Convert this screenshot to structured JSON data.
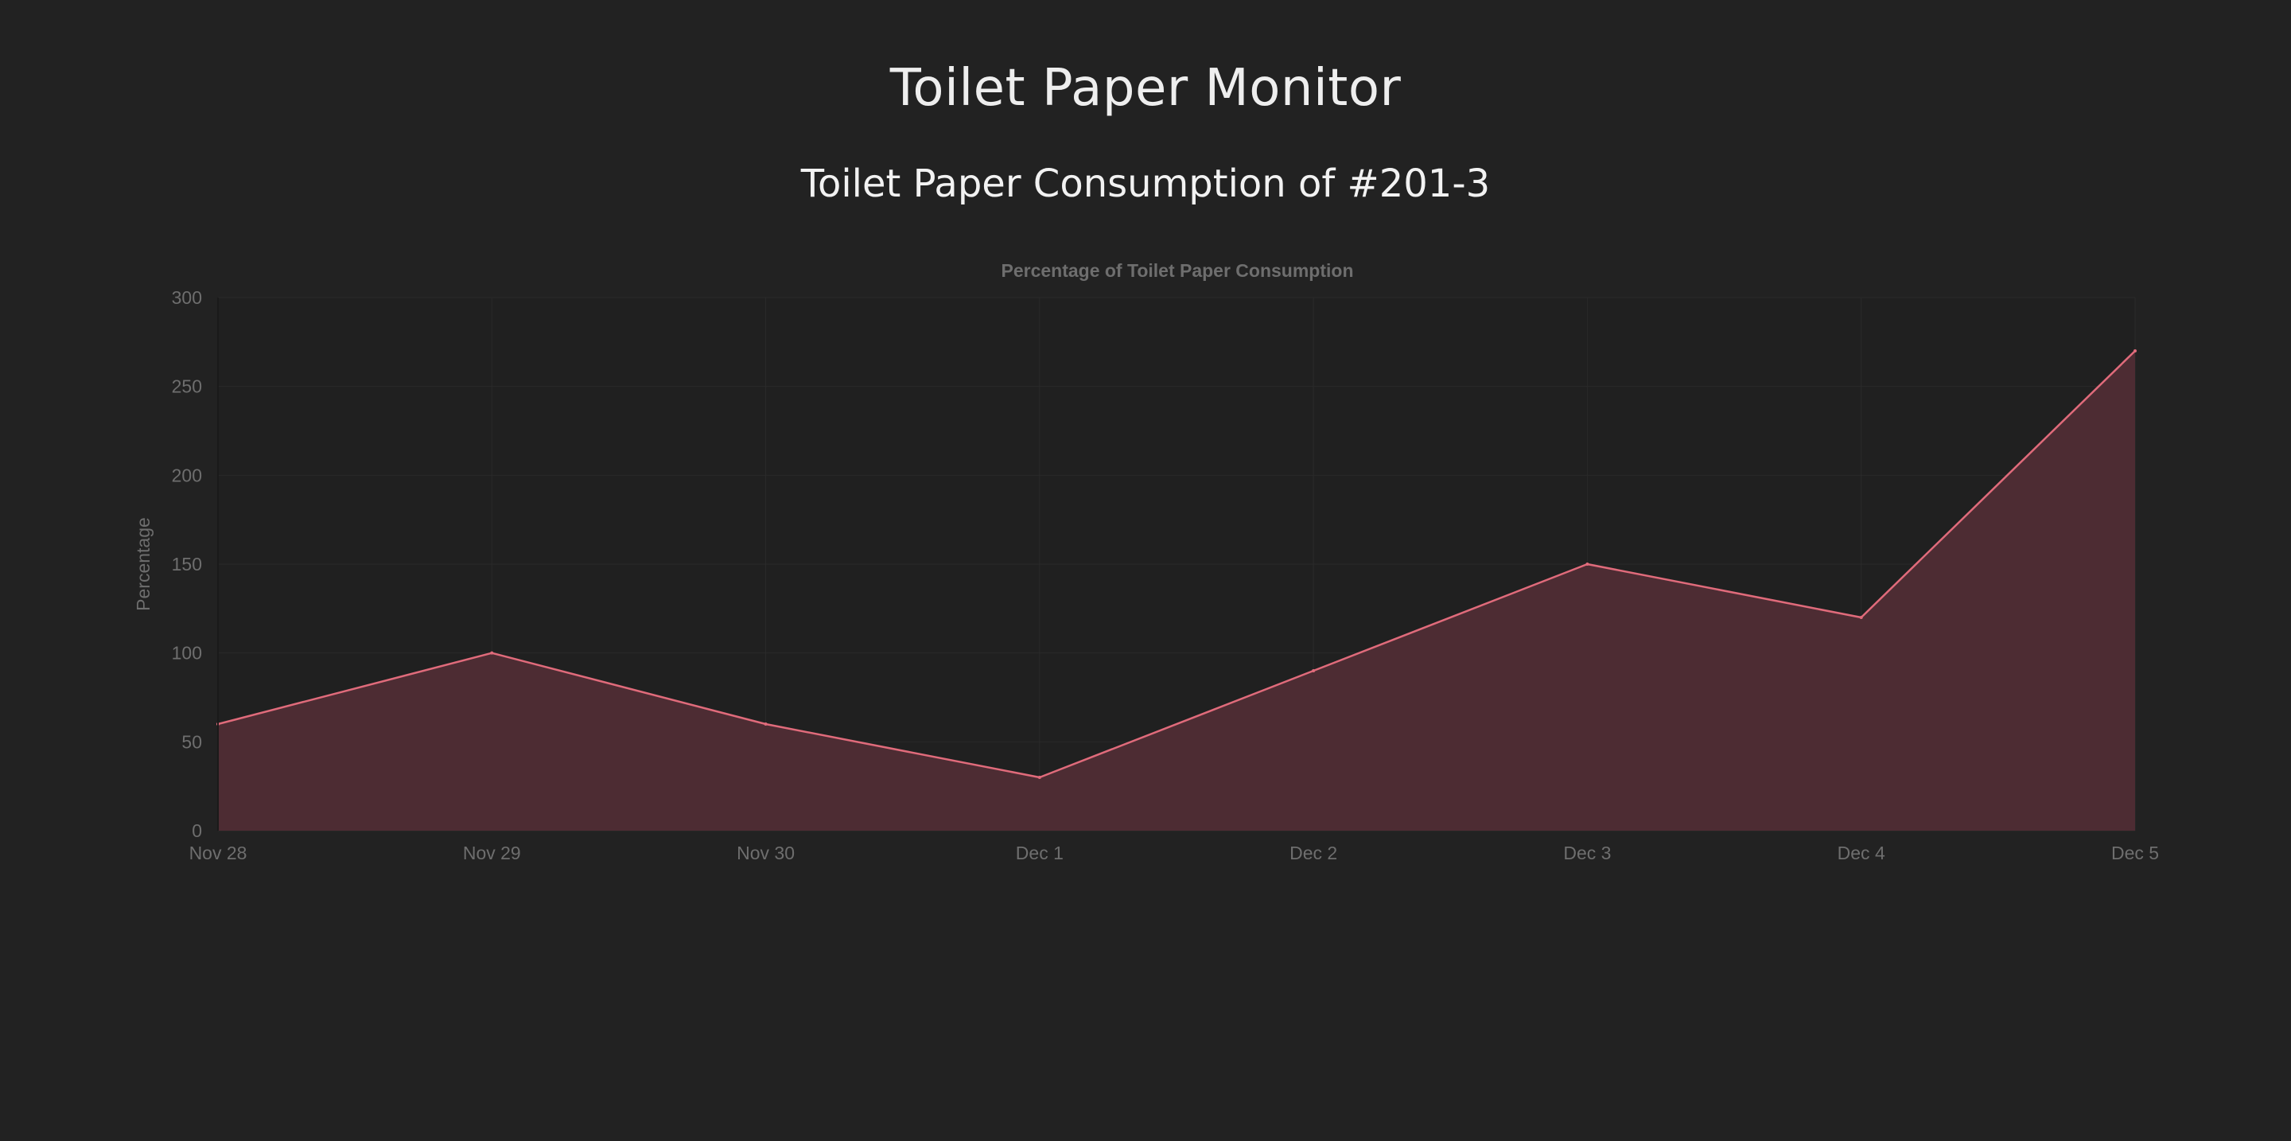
{
  "page": {
    "title": "Toilet Paper Monitor",
    "heading": "Toilet Paper Consumption of #201-3"
  },
  "colors": {
    "background": "#222222",
    "plot_background": "#202020",
    "grid": "#2a2a2a",
    "axis_text": "#6e6e6e",
    "line": "#e06b7b",
    "fill": "#4d2c33"
  },
  "chart_data": {
    "type": "area",
    "title": "Percentage of Toilet Paper Consumption",
    "xlabel": "",
    "ylabel": "Percentage",
    "categories": [
      "Nov 28",
      "Nov 29",
      "Nov 30",
      "Dec 1",
      "Dec 2",
      "Dec 3",
      "Dec 4",
      "Dec 5"
    ],
    "values": [
      60,
      100,
      60,
      30,
      90,
      150,
      120,
      270
    ],
    "ylim": [
      0,
      300
    ],
    "yticks": [
      0,
      50,
      100,
      150,
      200,
      250,
      300
    ],
    "grid": true,
    "legend": "none"
  }
}
